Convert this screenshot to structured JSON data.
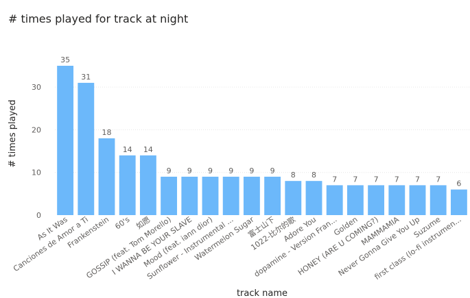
{
  "chart_data": {
    "type": "bar",
    "title": "# times played for track at night",
    "xlabel": "track name",
    "ylabel": "# times played",
    "ylim": [
      0,
      35
    ],
    "yticks": [
      0,
      10,
      20,
      30
    ],
    "grid": true,
    "bar_color": "#6cb8fa",
    "categories": [
      "As It Was",
      "Canciones de Amor a Ti",
      "Frankenstein",
      "60's",
      "如愿",
      "GOSSIP (feat. Tom Morello)",
      "I WANNA BE YOUR SLAVE",
      "Mood (feat. iann dior)",
      "Sunflower - Instrumental ...",
      "Watermelon Sugar",
      "富士山下",
      "1022-比尔的歌",
      "Adore You",
      "dopamine - Version Fran...",
      "Golden",
      "HONEY (ARE U COMING?)",
      "MAMMAMIA",
      "Never Gonna Give You Up",
      "Suzume",
      "first class (lo-fi instrumen..."
    ],
    "values": [
      35,
      31,
      18,
      14,
      14,
      9,
      9,
      9,
      9,
      9,
      9,
      8,
      8,
      7,
      7,
      7,
      7,
      7,
      7,
      6
    ]
  }
}
